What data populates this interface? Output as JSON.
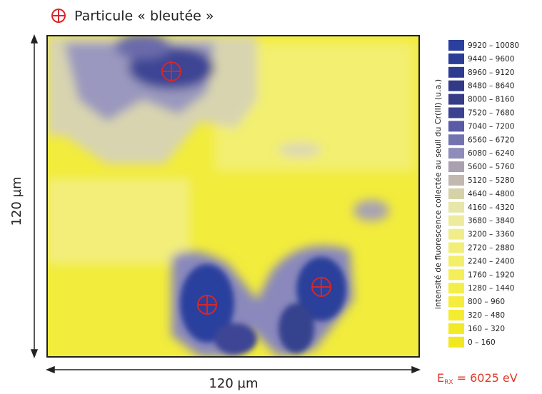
{
  "title": "Particule « bleutée »",
  "map": {
    "x_label": "120 µm",
    "y_label": "120 µm"
  },
  "legend": {
    "title": "intensité de fluorescence collectée au seuil du Cr(III) (u.a.)",
    "entries": [
      {
        "label": "9920 – 10080",
        "color": "#2a3f9e"
      },
      {
        "label": "9440 – 9600",
        "color": "#2c3d96"
      },
      {
        "label": "8960 – 9120",
        "color": "#2f3b8e"
      },
      {
        "label": "8480 – 8640",
        "color": "#323a88"
      },
      {
        "label": "8000 – 8160",
        "color": "#363c86"
      },
      {
        "label": "7520 – 7680",
        "color": "#3d4290"
      },
      {
        "label": "7040 – 7200",
        "color": "#5a5aa6"
      },
      {
        "label": "6560 – 6720",
        "color": "#7373b0"
      },
      {
        "label": "6080 – 6240",
        "color": "#8e8cb8"
      },
      {
        "label": "5600 – 5760",
        "color": "#aaa0b0"
      },
      {
        "label": "5120 – 5280",
        "color": "#c2b8b0"
      },
      {
        "label": "4640 – 4800",
        "color": "#d6d2a8"
      },
      {
        "label": "4160 – 4320",
        "color": "#e8e6a8"
      },
      {
        "label": "3680 – 3840",
        "color": "#eeec9c"
      },
      {
        "label": "3200 – 3360",
        "color": "#f0ee8a"
      },
      {
        "label": "2720 – 2880",
        "color": "#f2ef78"
      },
      {
        "label": "2240 – 2400",
        "color": "#f3ef68"
      },
      {
        "label": "1760 – 1920",
        "color": "#f4ee58"
      },
      {
        "label": "1280 – 1440",
        "color": "#f4ee48"
      },
      {
        "label": "800 – 960",
        "color": "#f4ed3c"
      },
      {
        "label": "320 – 480",
        "color": "#f3ec30"
      },
      {
        "label": "160 – 320",
        "color": "#f2ea28"
      },
      {
        "label": "0 – 160",
        "color": "#f1e820"
      }
    ]
  },
  "energy": {
    "symbol": "E",
    "subscript": "RX",
    "value": " = 6025 eV"
  }
}
